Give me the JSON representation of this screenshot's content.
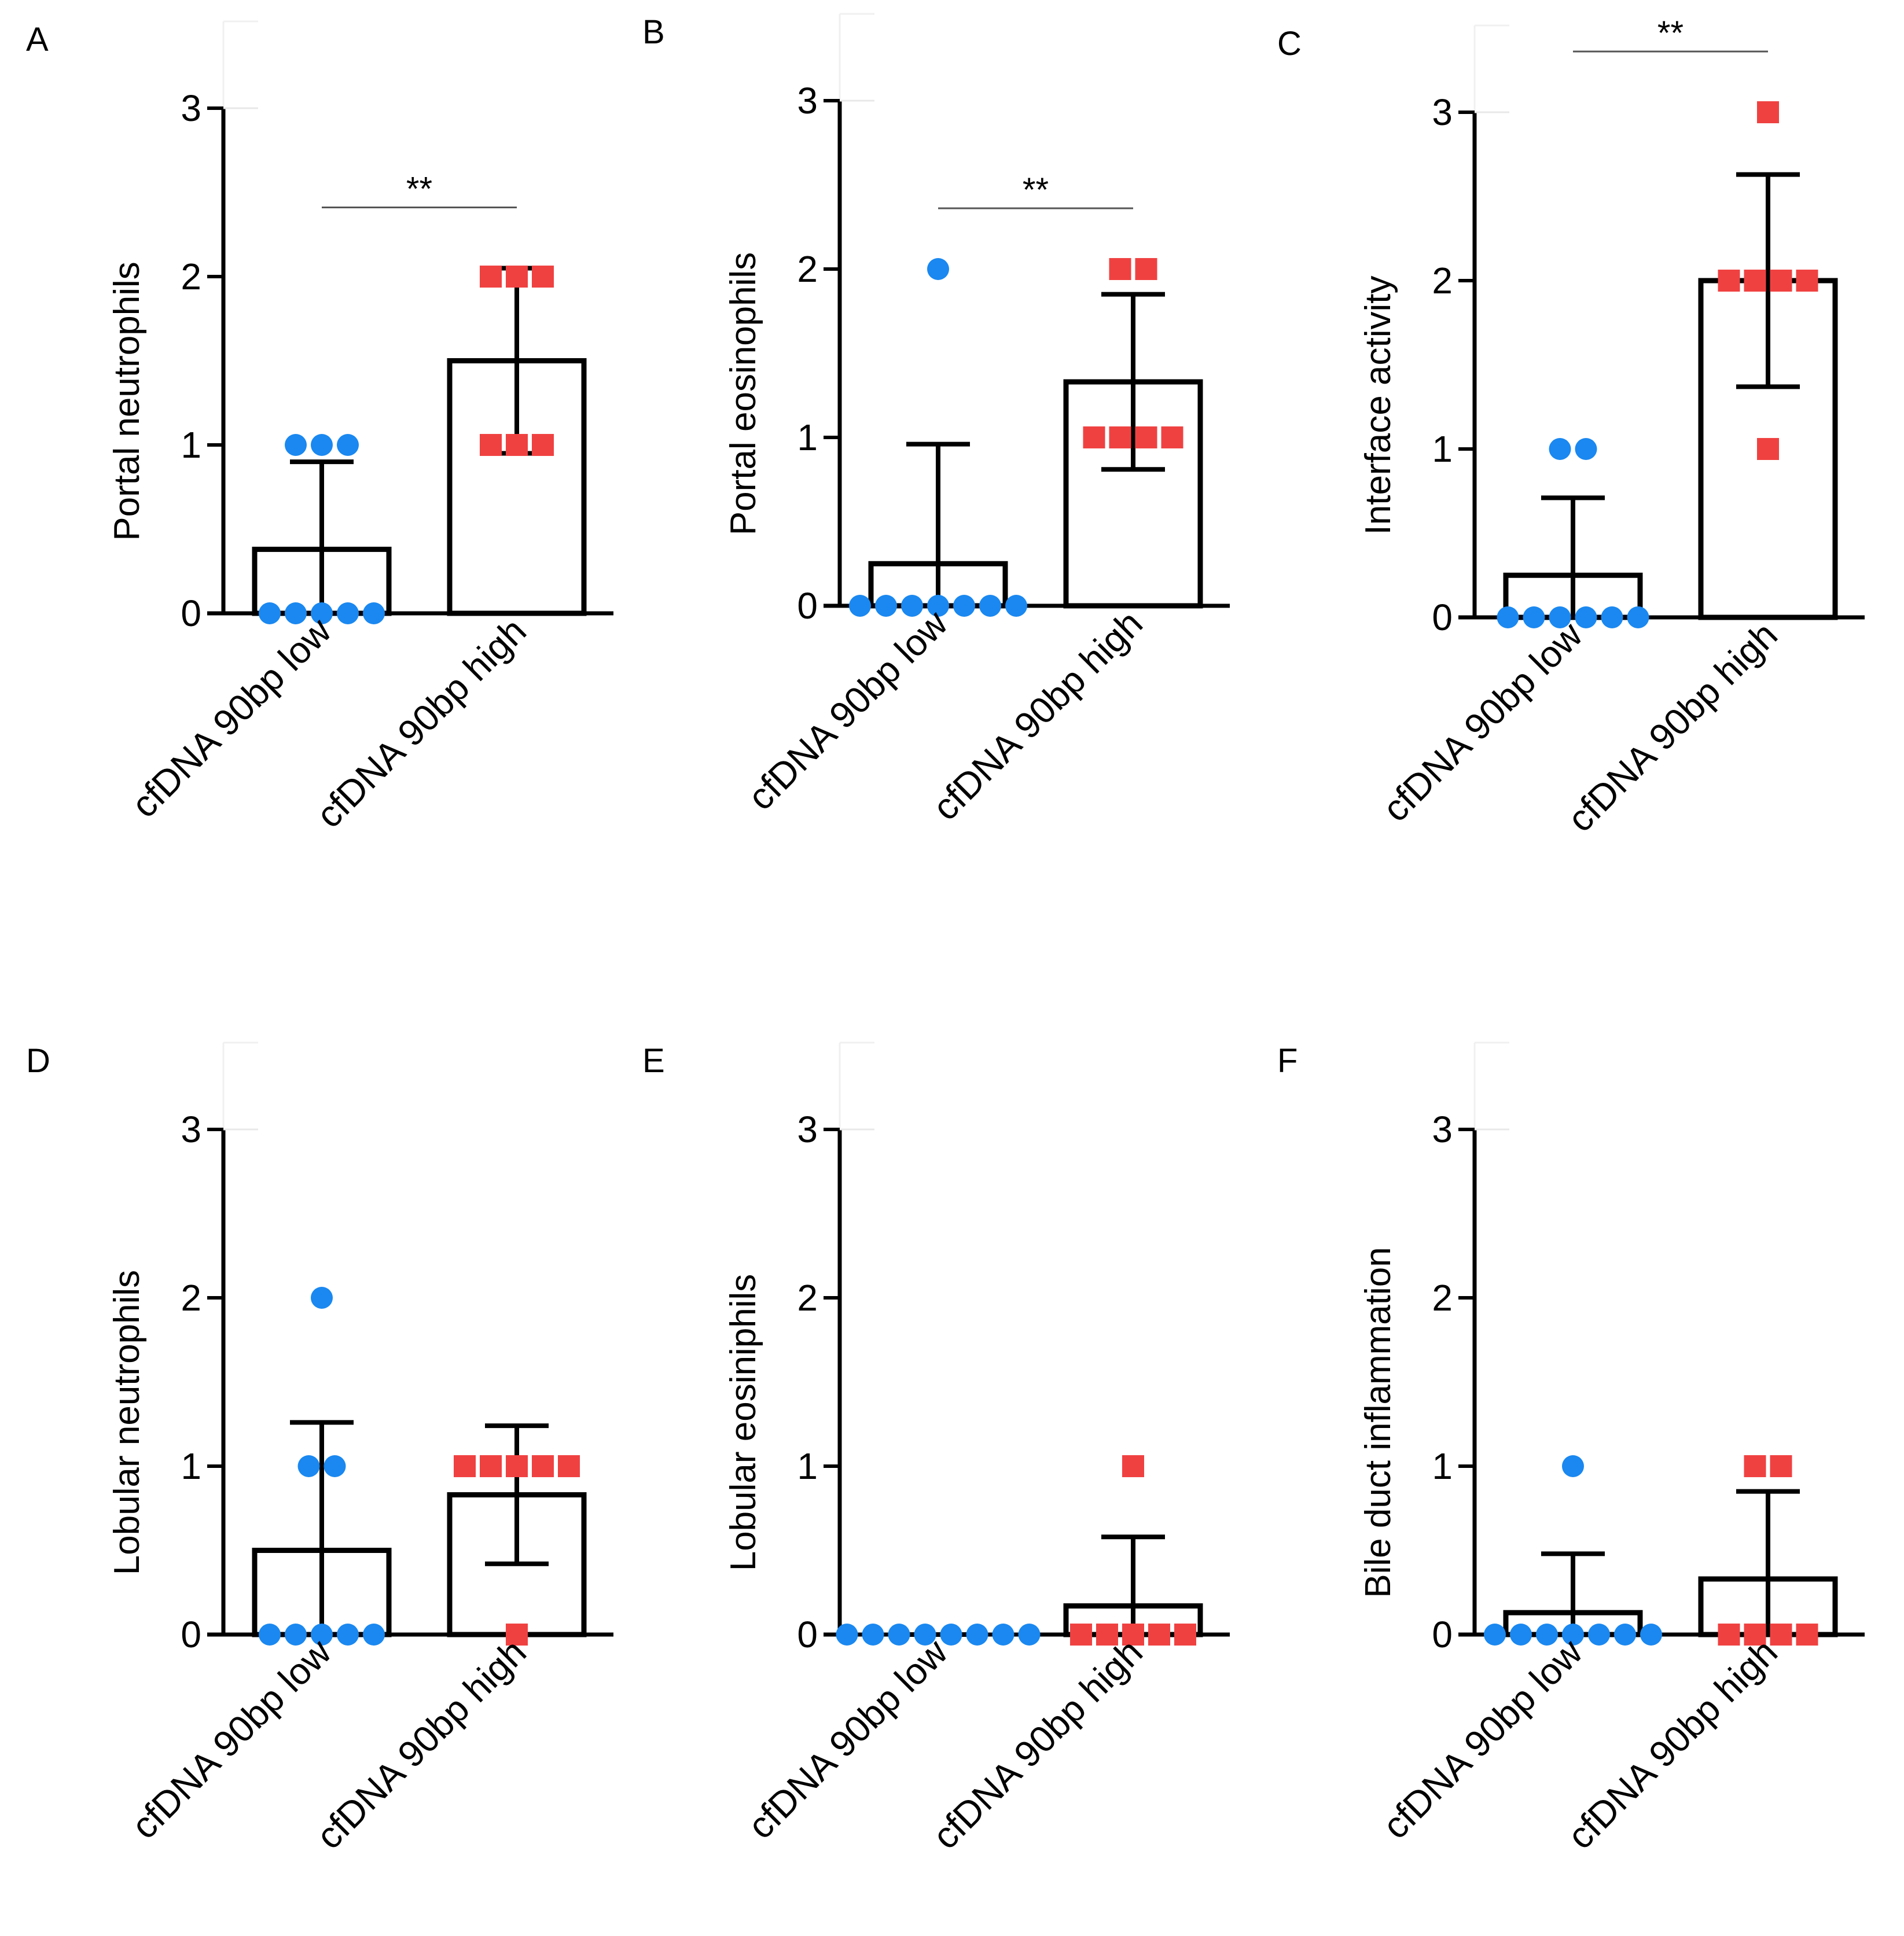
{
  "colors": {
    "low": "#1a88f0",
    "high": "#f04141",
    "axis": "#000000"
  },
  "chart_data": [
    {
      "panel": "A",
      "type": "bar",
      "ylabel": "Portal neutrophils",
      "ylim": [
        0,
        3
      ],
      "yticks": [
        "0",
        "1",
        "2",
        "3"
      ],
      "categories": [
        "cfDNA 90bp low",
        "cfDNA 90bp high"
      ],
      "means": [
        0.38,
        1.5
      ],
      "errors": [
        0.52,
        0.55
      ],
      "points": [
        [
          1,
          1,
          1,
          0,
          0,
          0,
          0,
          0
        ],
        [
          2,
          2,
          2,
          1,
          1,
          1
        ]
      ],
      "significance": "**"
    },
    {
      "panel": "B",
      "type": "bar",
      "ylabel": "Portal eosinophils",
      "ylim": [
        0,
        3
      ],
      "yticks": [
        "0",
        "1",
        "2",
        "3"
      ],
      "categories": [
        "cfDNA 90bp low",
        "cfDNA 90bp high"
      ],
      "means": [
        0.25,
        1.33
      ],
      "errors": [
        0.71,
        0.52
      ],
      "points": [
        [
          2,
          0,
          0,
          0,
          0,
          0,
          0,
          0
        ],
        [
          2,
          2,
          1,
          1,
          1,
          1
        ]
      ],
      "significance": "**"
    },
    {
      "panel": "C",
      "type": "bar",
      "ylabel": "Interface activity",
      "ylim": [
        0,
        3
      ],
      "yticks": [
        "0",
        "1",
        "2",
        "3"
      ],
      "categories": [
        "cfDNA 90bp low",
        "cfDNA 90bp high"
      ],
      "means": [
        0.25,
        2.0
      ],
      "errors": [
        0.46,
        0.63
      ],
      "points": [
        [
          1,
          1,
          0,
          0,
          0,
          0,
          0,
          0
        ],
        [
          3,
          2,
          2,
          2,
          2,
          1
        ]
      ],
      "significance": "**"
    },
    {
      "panel": "D",
      "type": "bar",
      "ylabel": "Lobular neutrophils",
      "ylim": [
        0,
        3
      ],
      "yticks": [
        "0",
        "1",
        "2",
        "3"
      ],
      "categories": [
        "cfDNA 90bp low",
        "cfDNA 90bp high"
      ],
      "means": [
        0.5,
        0.83
      ],
      "errors": [
        0.76,
        0.41
      ],
      "points": [
        [
          2,
          1,
          1,
          0,
          0,
          0,
          0,
          0
        ],
        [
          1,
          1,
          1,
          1,
          1,
          0
        ]
      ],
      "significance": ""
    },
    {
      "panel": "E",
      "type": "bar",
      "ylabel": "Lobular eosiniphils",
      "ylim": [
        0,
        3
      ],
      "yticks": [
        "0",
        "1",
        "2",
        "3"
      ],
      "categories": [
        "cfDNA 90bp low",
        "cfDNA 90bp high"
      ],
      "means": [
        0.0,
        0.17
      ],
      "errors": [
        0.0,
        0.41
      ],
      "points": [
        [
          0,
          0,
          0,
          0,
          0,
          0,
          0,
          0
        ],
        [
          1,
          0,
          0,
          0,
          0,
          0
        ]
      ],
      "significance": ""
    },
    {
      "panel": "F",
      "type": "bar",
      "ylabel": "Bile duct inflammation",
      "ylim": [
        0,
        3
      ],
      "yticks": [
        "0",
        "1",
        "2",
        "3"
      ],
      "categories": [
        "cfDNA 90bp low",
        "cfDNA 90bp high"
      ],
      "means": [
        0.13,
        0.33
      ],
      "errors": [
        0.35,
        0.52
      ],
      "points": [
        [
          1,
          0,
          0,
          0,
          0,
          0,
          0,
          0
        ],
        [
          1,
          1,
          0,
          0,
          0,
          0
        ]
      ],
      "significance": ""
    }
  ]
}
